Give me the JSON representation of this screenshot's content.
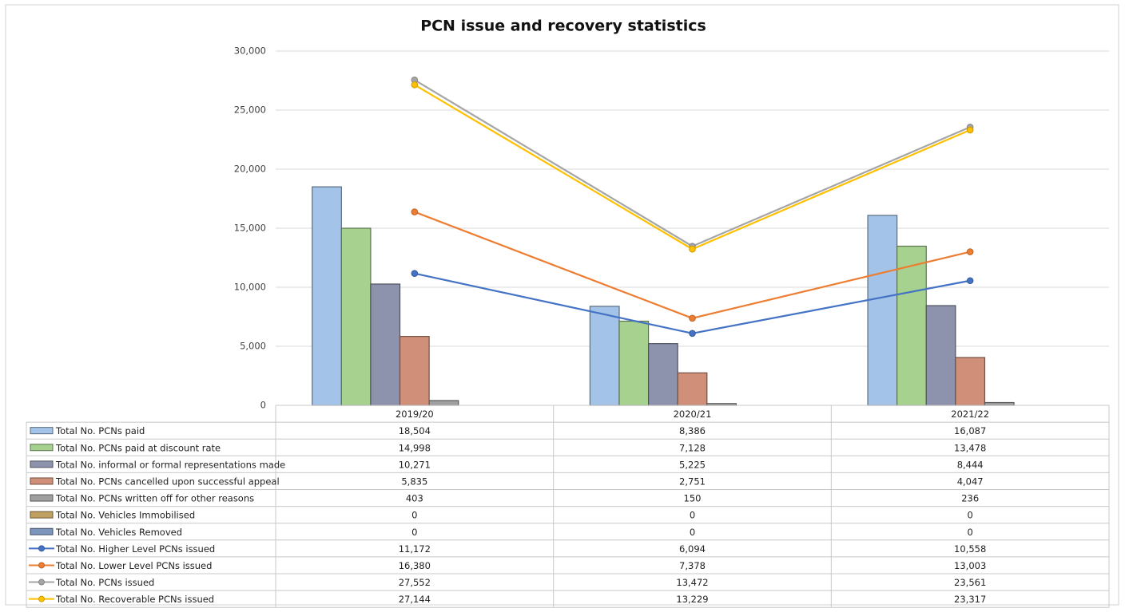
{
  "chart_data": {
    "type": "combo",
    "title": "PCN issue and recovery statistics",
    "categories": [
      "2019/20",
      "2020/21",
      "2021/22"
    ],
    "ylim": [
      0,
      30000
    ],
    "yticks": [
      0,
      {
        "value": 5000,
        "label": "5,000"
      },
      {
        "value": 10000,
        "label": "10,000"
      },
      {
        "value": 15000,
        "label": "15,000"
      },
      {
        "value": 20000,
        "label": "20,000"
      },
      {
        "value": 25000,
        "label": "25,000"
      },
      {
        "value": 30000,
        "label": "30,000"
      }
    ],
    "grid": true,
    "series": [
      {
        "name": "Total No. PCNs paid",
        "type": "bar",
        "color": "#a3c4e8",
        "values": [
          18504,
          8386,
          16087
        ],
        "value_labels": [
          "18,504",
          "8,386",
          "16,087"
        ]
      },
      {
        "name": "Total No. PCNs paid at discount rate",
        "type": "bar",
        "color": "#a6d18e",
        "values": [
          14998,
          7128,
          13478
        ],
        "value_labels": [
          "14,998",
          "7,128",
          "13,478"
        ]
      },
      {
        "name": "Total No. informal or formal representations made",
        "type": "bar",
        "color": "#8d93ad",
        "values": [
          10271,
          5225,
          8444
        ],
        "value_labels": [
          "10,271",
          "5,225",
          "8,444"
        ]
      },
      {
        "name": "Total No. PCNs cancelled upon successful appeal",
        "type": "bar",
        "color": "#d08f78",
        "values": [
          5835,
          2751,
          4047
        ],
        "value_labels": [
          "5,835",
          "2,751",
          "4,047"
        ]
      },
      {
        "name": "Total No. PCNs written off for other reasons",
        "type": "bar",
        "color": "#a0a0a0",
        "values": [
          403,
          150,
          236
        ],
        "value_labels": [
          "403",
          "150",
          "236"
        ]
      },
      {
        "name": "Total No. Vehicles Immobilised",
        "type": "bar",
        "color": "#c0a060",
        "values": [
          0,
          0,
          0
        ]
      },
      {
        "name": "Total No. Vehicles Removed",
        "type": "bar",
        "color": "#7b95bd",
        "values": [
          0,
          0,
          0
        ]
      },
      {
        "name": "Total No. Higher Level PCNs issued",
        "type": "line",
        "color": "#4472c4",
        "values": [
          11172,
          6094,
          10558
        ],
        "value_labels": [
          "11,172",
          "6,094",
          "10,558"
        ]
      },
      {
        "name": "Total No. Lower Level PCNs issued",
        "type": "line",
        "color": "#ed7d31",
        "values": [
          16380,
          7378,
          13003
        ],
        "value_labels": [
          "16,380",
          "7,378",
          "13,003"
        ]
      },
      {
        "name": "Total No. PCNs issued",
        "type": "line",
        "color": "#a5a5a5",
        "values": [
          27552,
          13472,
          23561
        ],
        "value_labels": [
          "27,552",
          "13,472",
          "23,561"
        ]
      },
      {
        "name": "Total No. Recoverable PCNs issued",
        "type": "line",
        "color": "#ffc000",
        "values": [
          27144,
          13229,
          23317
        ],
        "value_labels": [
          "27,144",
          "13,229",
          "23,317"
        ]
      }
    ]
  }
}
